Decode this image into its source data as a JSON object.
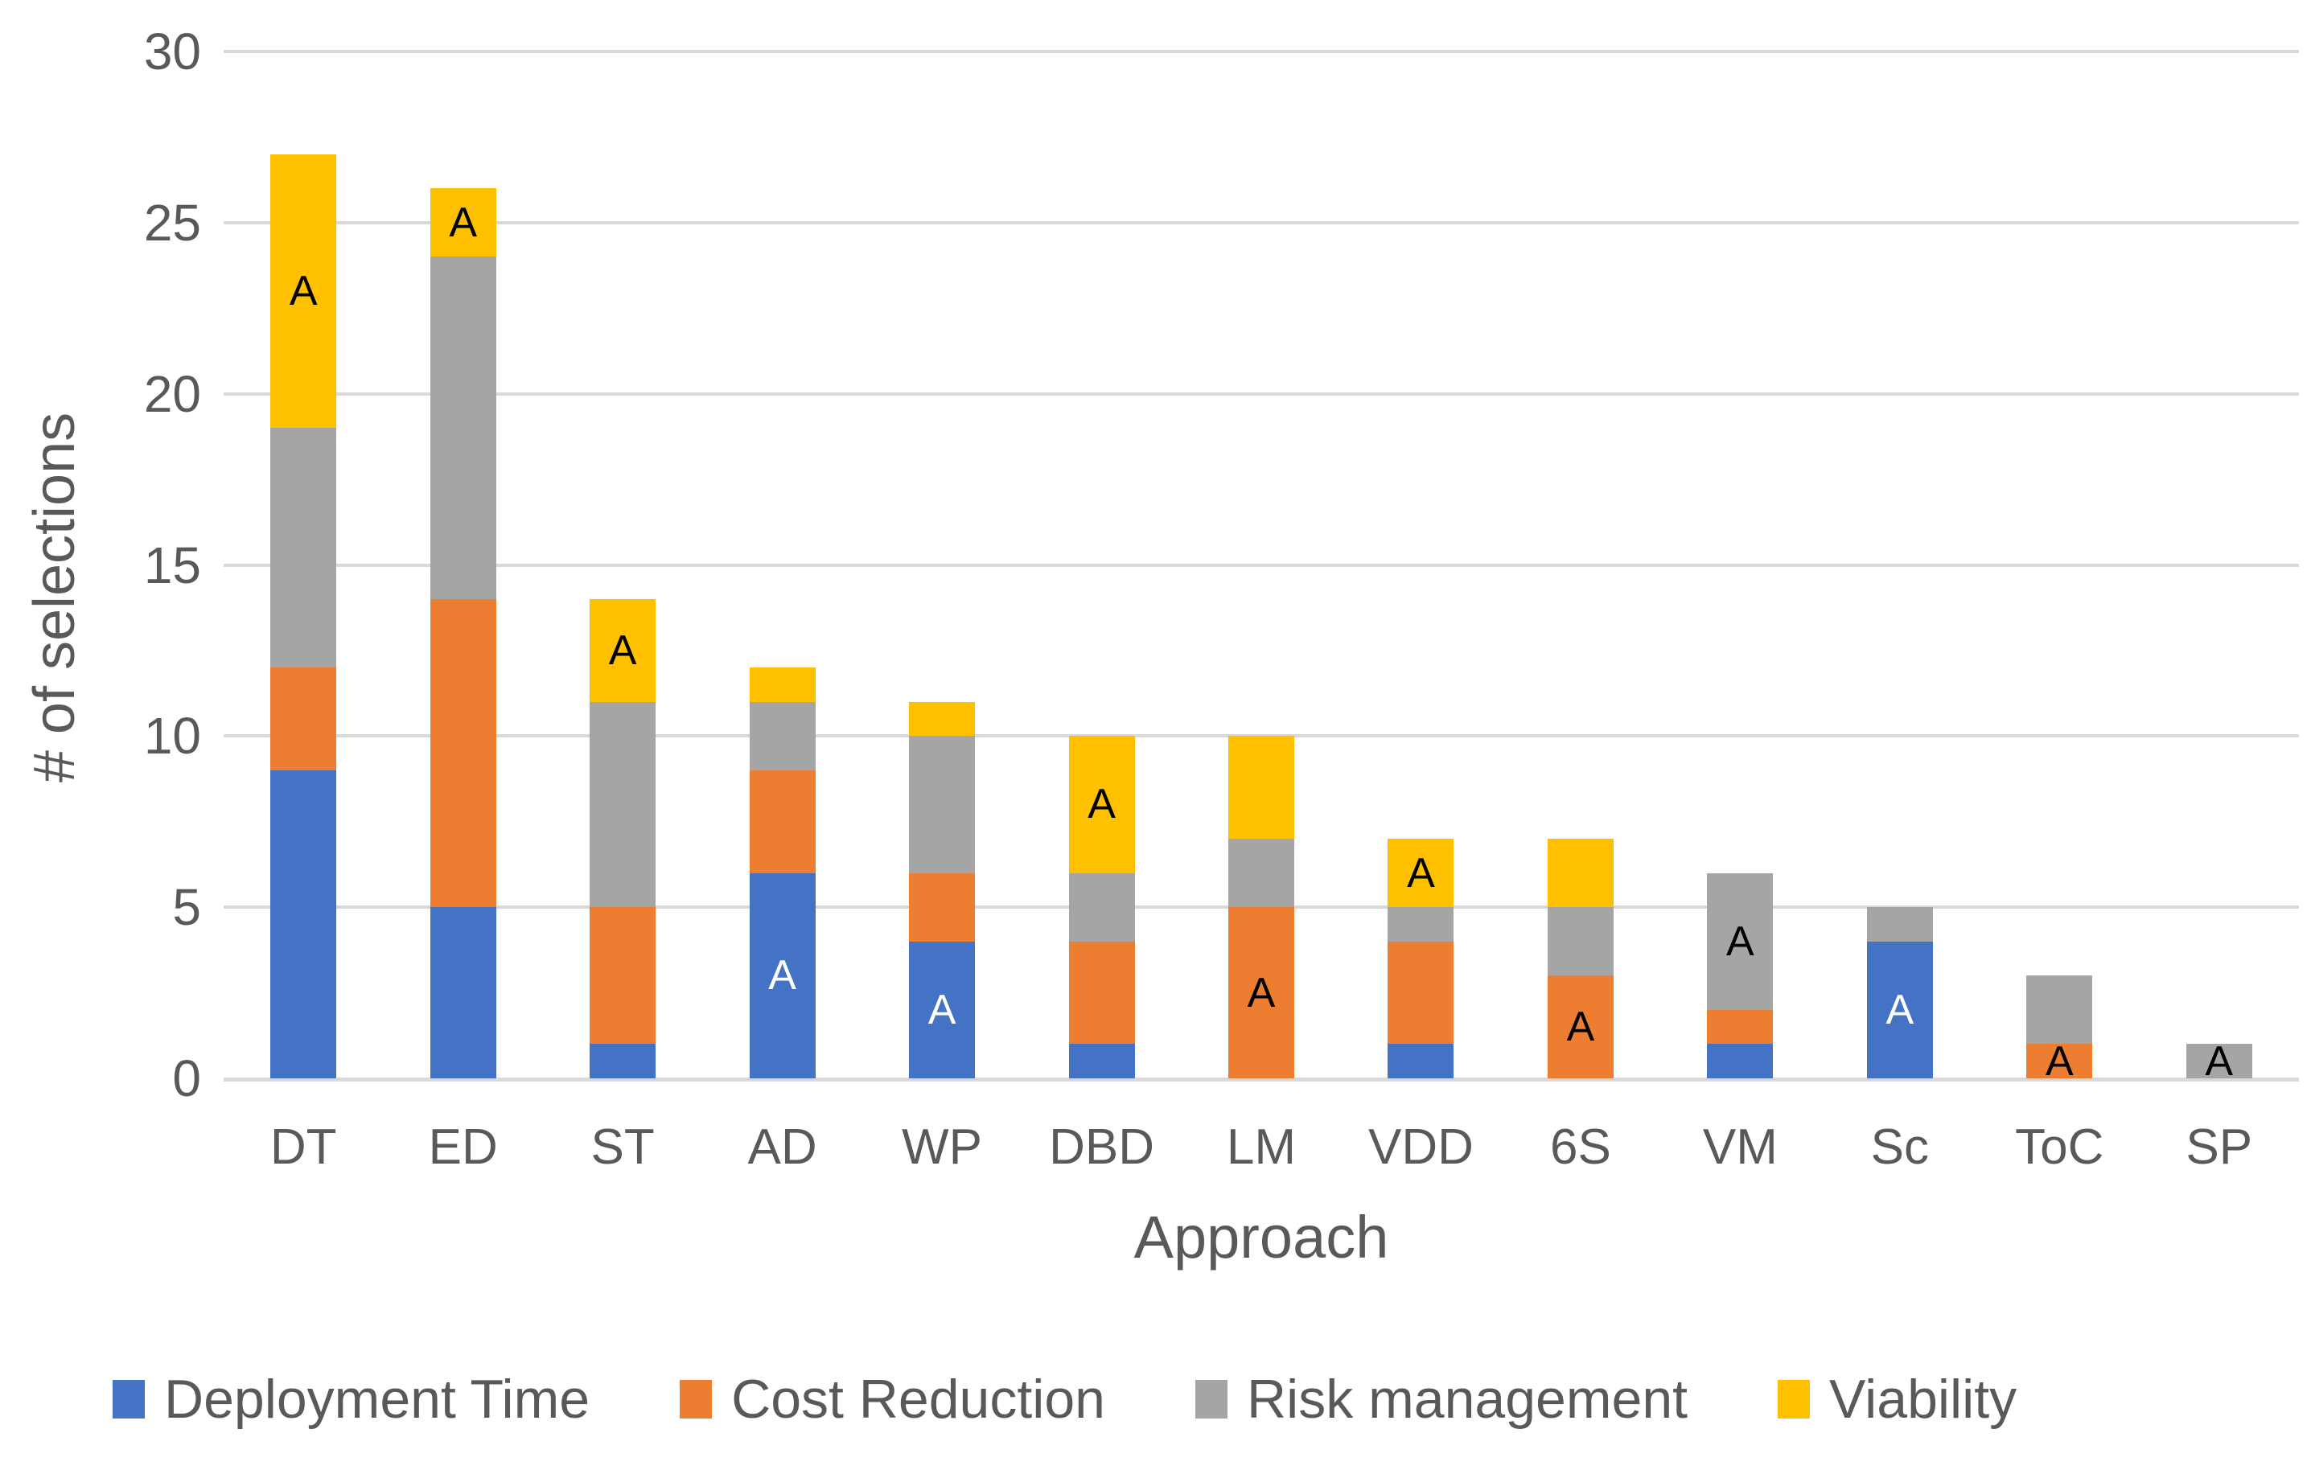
{
  "chart_data": {
    "type": "bar",
    "stacked": true,
    "xlabel": "Approach",
    "ylabel": "# of selections",
    "ylim": [
      0,
      30
    ],
    "yticks": [
      0,
      5,
      10,
      15,
      20,
      25,
      30
    ],
    "grid": true,
    "legend_position": "bottom",
    "categories": [
      "DT",
      "ED",
      "ST",
      "AD",
      "WP",
      "DBD",
      "LM",
      "VDD",
      "6S",
      "VM",
      "Sc",
      "ToC",
      "SP"
    ],
    "series": [
      {
        "name": "Deployment Time",
        "color": "#4472C4",
        "values": [
          9,
          5,
          1,
          6,
          4,
          1,
          0,
          1,
          0,
          1,
          4,
          0,
          0
        ]
      },
      {
        "name": "Cost Reduction",
        "color": "#ED7D31",
        "values": [
          3,
          9,
          4,
          3,
          2,
          3,
          5,
          3,
          3,
          1,
          0,
          1,
          0
        ]
      },
      {
        "name": "Risk management",
        "color": "#A5A5A5",
        "values": [
          7,
          10,
          6,
          2,
          4,
          2,
          2,
          1,
          2,
          4,
          1,
          2,
          1
        ]
      },
      {
        "name": "Viability",
        "color": "#FFC000",
        "values": [
          8,
          2,
          3,
          1,
          1,
          4,
          3,
          2,
          2,
          0,
          0,
          0,
          0
        ]
      }
    ],
    "totals": [
      27,
      26,
      14,
      12,
      11,
      10,
      10,
      7,
      7,
      6,
      5,
      3,
      1
    ],
    "annotations": [
      {
        "category": "DT",
        "series": "Viability",
        "text": "A",
        "text_color": "#000000"
      },
      {
        "category": "ED",
        "series": "Viability",
        "text": "A",
        "text_color": "#000000"
      },
      {
        "category": "ST",
        "series": "Viability",
        "text": "A",
        "text_color": "#000000"
      },
      {
        "category": "AD",
        "series": "Deployment Time",
        "text": "A",
        "text_color": "#FFFFFF"
      },
      {
        "category": "WP",
        "series": "Deployment Time",
        "text": "A",
        "text_color": "#FFFFFF"
      },
      {
        "category": "DBD",
        "series": "Viability",
        "text": "A",
        "text_color": "#000000"
      },
      {
        "category": "LM",
        "series": "Cost Reduction",
        "text": "A",
        "text_color": "#000000"
      },
      {
        "category": "VDD",
        "series": "Viability",
        "text": "A",
        "text_color": "#000000"
      },
      {
        "category": "6S",
        "series": "Cost Reduction",
        "text": "A",
        "text_color": "#000000"
      },
      {
        "category": "VM",
        "series": "Risk management",
        "text": "A",
        "text_color": "#000000"
      },
      {
        "category": "Sc",
        "series": "Deployment Time",
        "text": "A",
        "text_color": "#FFFFFF"
      },
      {
        "category": "ToC",
        "series": "Cost Reduction",
        "text": "A",
        "text_color": "#000000"
      },
      {
        "category": "SP",
        "series": "Risk management",
        "text": "A",
        "text_color": "#000000"
      }
    ],
    "colors": {
      "gridline": "#D9D9D9",
      "axis_text": "#595959",
      "background": "#FFFFFF"
    }
  }
}
